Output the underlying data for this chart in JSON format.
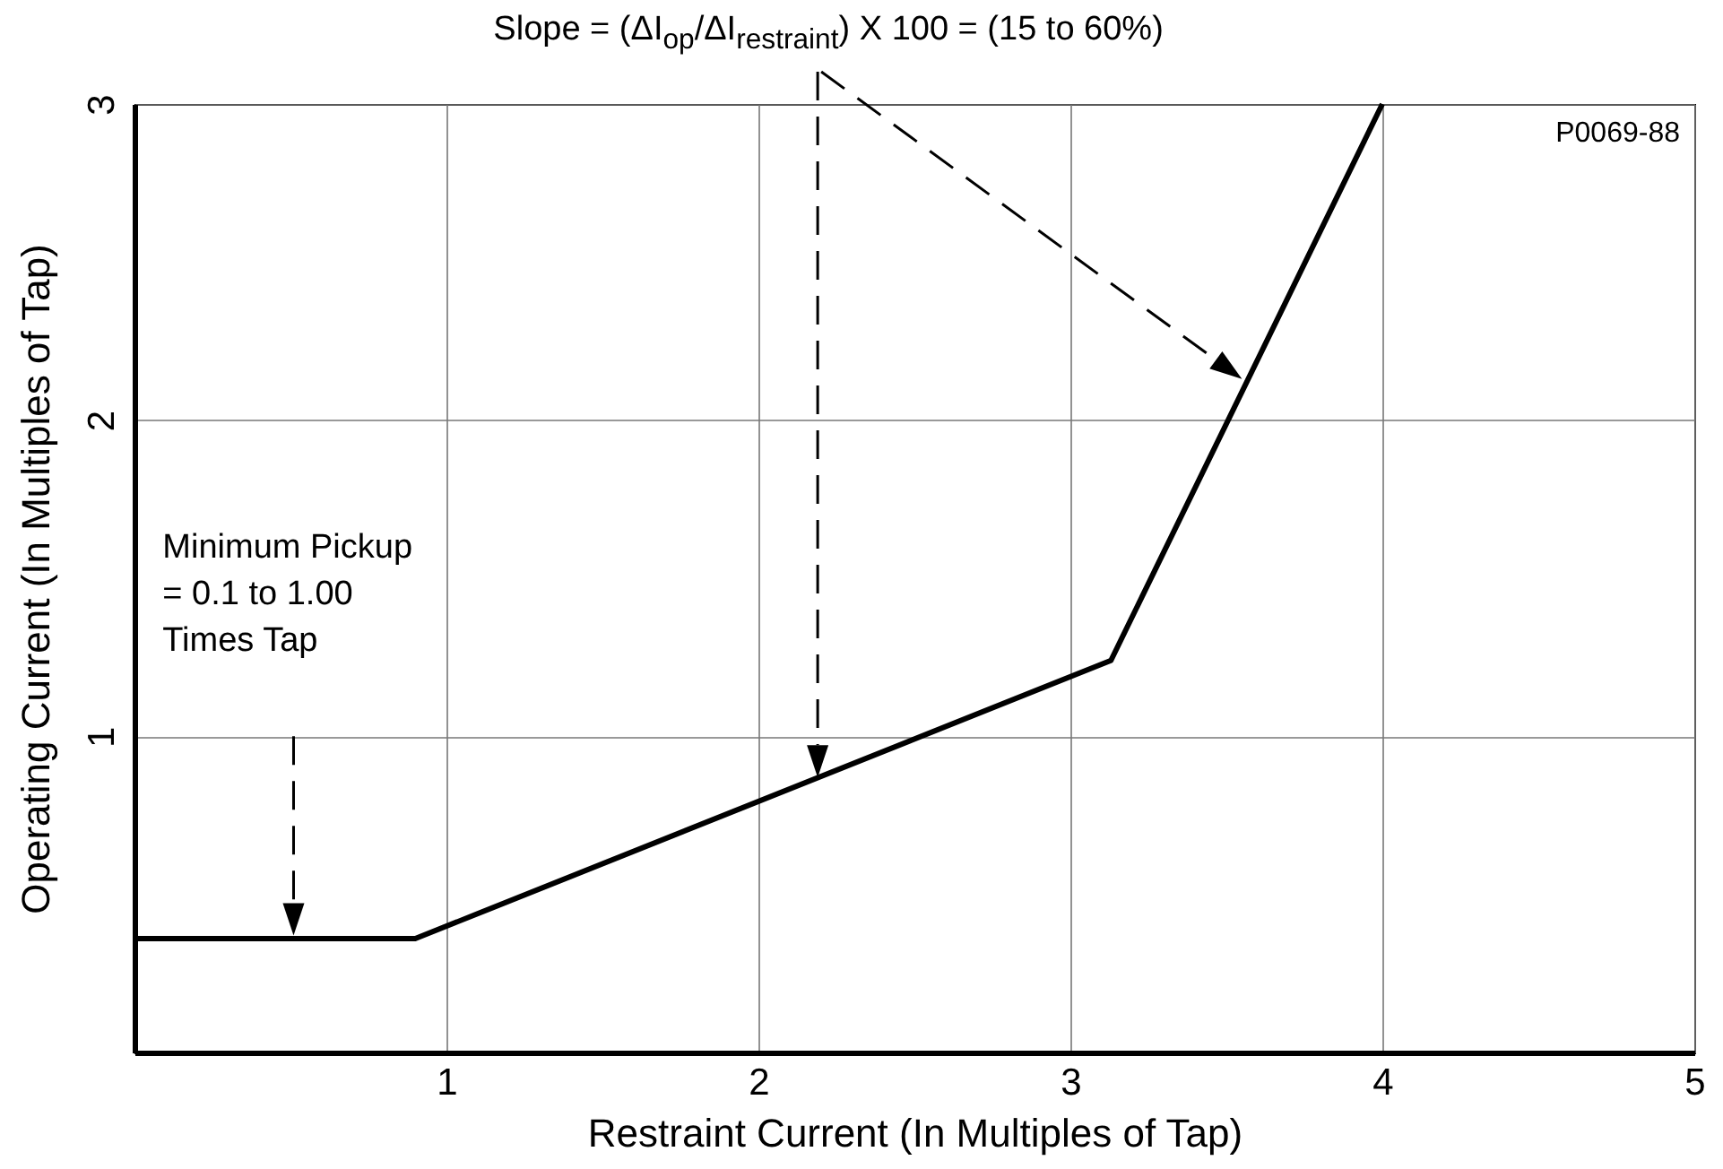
{
  "chart_data": {
    "type": "line",
    "xlabel": "Restraint Current (In Multiples of Tap)",
    "ylabel": "Operating Current (In Multiples of Tap)",
    "x": [
      0,
      0.9,
      3.13,
      4.0
    ],
    "series": [
      {
        "color": "#000000",
        "values": [
          0.36,
          0.36,
          1.24,
          3.0
        ]
      }
    ],
    "xlim": [
      0,
      5
    ],
    "ylim": [
      0,
      3
    ],
    "xticks": [
      1,
      2,
      3,
      4,
      5
    ],
    "yticks": [
      1,
      2,
      3
    ],
    "grid": true,
    "annotations": [
      "Slope = (ΔI$_{op}$/ΔI$_{restraint}$) X 100 = (15 to 60%)",
      "Minimum Pickup\n= 0.1 to 1.00\nTimes Tap",
      "P0069-88"
    ]
  }
}
